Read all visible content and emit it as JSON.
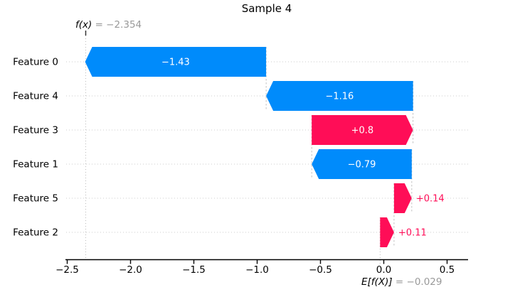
{
  "chart_data": {
    "type": "bar",
    "subtype": "shap_waterfall",
    "title": "Sample 4",
    "fx": {
      "prefix": "f(x)",
      "rest": " = −2.354",
      "value": -2.354
    },
    "efx": {
      "prefix": "E[f(X)]",
      "rest": " = −0.029",
      "value": -0.029
    },
    "base_value": -0.029,
    "features": [
      {
        "name": "Feature 0",
        "value": -1.43,
        "label": "−1.43"
      },
      {
        "name": "Feature 4",
        "value": -1.16,
        "label": "−1.16"
      },
      {
        "name": "Feature 3",
        "value": 0.8,
        "label": "+0.8"
      },
      {
        "name": "Feature 1",
        "value": -0.79,
        "label": "−0.79"
      },
      {
        "name": "Feature 5",
        "value": 0.14,
        "label": "+0.14"
      },
      {
        "name": "Feature 2",
        "value": 0.11,
        "label": "+0.11"
      }
    ],
    "x_axis": {
      "ticks": [
        -2.5,
        -2.0,
        -1.5,
        -1.0,
        -0.5,
        0.0,
        0.5
      ],
      "tick_labels": [
        "−2.5",
        "−2.0",
        "−1.5",
        "−1.0",
        "−0.5",
        "0.0",
        "0.5"
      ],
      "lim": [
        -2.51,
        0.67
      ]
    },
    "grid": "horizontal-dotted-row-guides",
    "legend": null,
    "colors": {
      "positive": "#ff0d57",
      "negative": "#008bfb",
      "label_muted": "#999999",
      "row_guide": "#cccccc",
      "connector": "#bbbbbb",
      "axis": "#000000",
      "bar_label_inside": "#ffffff"
    }
  }
}
